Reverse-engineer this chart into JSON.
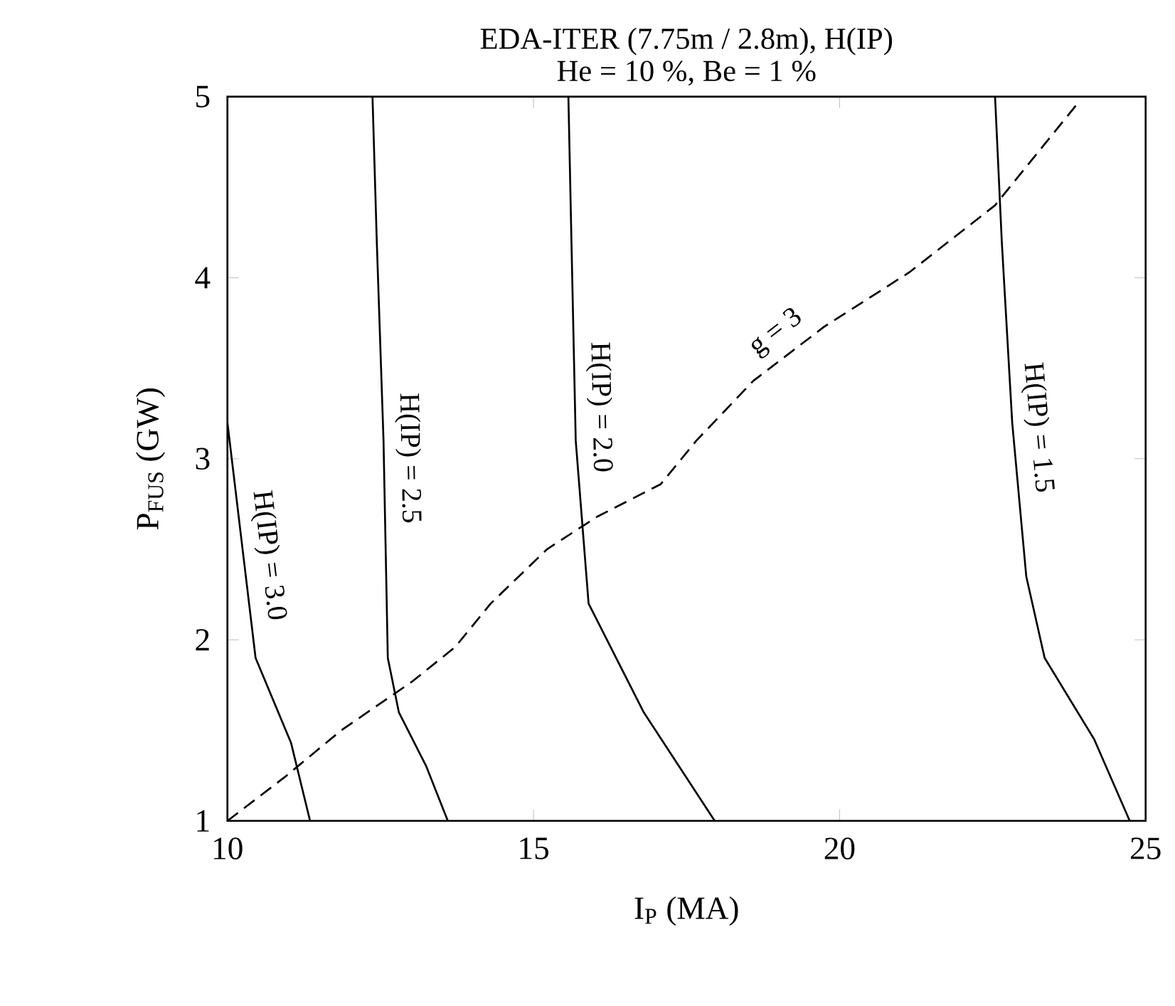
{
  "chart_data": {
    "type": "line",
    "title": "EDA-ITER (7.75m / 2.8m), H(IP)",
    "subtitle": "He = 10 %, Be = 1 %",
    "xlabel": "I$_{P}$   (MA)",
    "ylabel": "P$_{FUS}$   (GW)",
    "xlim": [
      10,
      25
    ],
    "ylim": [
      1,
      5
    ],
    "xticks": [
      10,
      15,
      20,
      25
    ],
    "yticks": [
      1,
      2,
      3,
      4,
      5
    ],
    "series": [
      {
        "name": "H(IP) = 3.0",
        "color": "#000000",
        "line_style": "solid",
        "x": [
          10,
          10.46,
          11.04,
          11.35
        ],
        "values": [
          3.2,
          1.9,
          1.43,
          1.0
        ]
      },
      {
        "name": "H(IP) = 2.5",
        "color": "#000000",
        "line_style": "solid",
        "x": [
          12.37,
          12.44,
          12.55,
          12.62,
          12.8,
          13.25,
          13.6
        ],
        "values": [
          5,
          4.2,
          3.1,
          1.9,
          1.6,
          1.3,
          1.0
        ]
      },
      {
        "name": "H(IP) = 2.0",
        "color": "#000000",
        "line_style": "solid",
        "x": [
          15.57,
          15.62,
          15.69,
          15.9,
          16.8,
          17.96
        ],
        "values": [
          5,
          4.2,
          3.1,
          2.2,
          1.6,
          1.0
        ]
      },
      {
        "name": "H(IP) = 1.5",
        "color": "#000000",
        "line_style": "solid",
        "x": [
          22.54,
          22.65,
          22.82,
          23.05,
          23.35,
          24.16,
          24.74
        ],
        "values": [
          5,
          4.2,
          3.2,
          2.35,
          1.9,
          1.45,
          1.0
        ]
      },
      {
        "name": "g = 3",
        "color": "#000000",
        "line_style": "dashed",
        "x": [
          10,
          10.93,
          11.86,
          13.02,
          13.72,
          14.3,
          15.22,
          16.04,
          17.08,
          17.66,
          18.59,
          19.75,
          21.14,
          22.54,
          23.93
        ],
        "values": [
          1,
          1.24,
          1.5,
          1.77,
          1.96,
          2.2,
          2.5,
          2.68,
          2.86,
          3.1,
          3.43,
          3.73,
          4.03,
          4.4,
          4.98
        ]
      }
    ]
  }
}
